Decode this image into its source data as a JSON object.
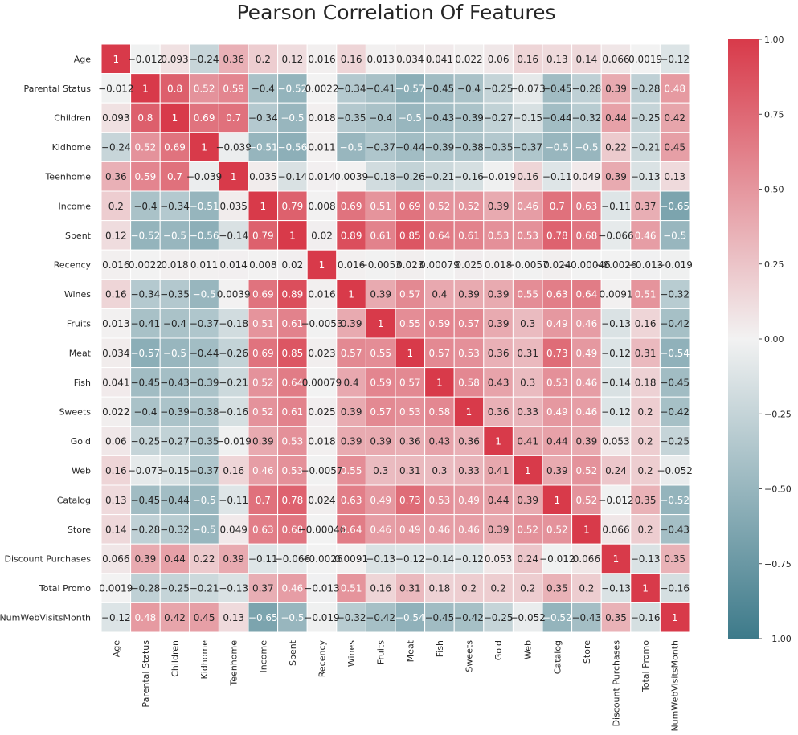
{
  "chart_data": {
    "type": "heatmap",
    "title": "Pearson Correlation Of Features",
    "rows": [
      "Age",
      "Parental Status",
      "Children",
      "Kidhome",
      "Teenhome",
      "Income",
      "Spent",
      "Recency",
      "Wines",
      "Fruits",
      "Meat",
      "Fish",
      "Sweets",
      "Gold",
      "Web",
      "Catalog",
      "Store",
      "Discount Purchases",
      "Total Promo",
      "NumWebVisitsMonth"
    ],
    "columns": [
      "Age",
      "Parental Status",
      "Children",
      "Kidhome",
      "Teenhome",
      "Income",
      "Spent",
      "Recency",
      "Wines",
      "Fruits",
      "Meat",
      "Fish",
      "Sweets",
      "Gold",
      "Web",
      "Catalog",
      "Store",
      "Discount Purchases",
      "Total Promo",
      "NumWebVisitsMonth"
    ],
    "values": [
      [
        1,
        -0.012,
        0.093,
        -0.24,
        0.36,
        0.2,
        0.12,
        0.016,
        0.16,
        0.013,
        0.034,
        0.041,
        0.022,
        0.06,
        0.16,
        0.13,
        0.14,
        0.066,
        0.0019,
        -0.12
      ],
      [
        -0.012,
        1,
        0.8,
        0.52,
        0.59,
        -0.4,
        -0.52,
        0.0022,
        -0.34,
        -0.41,
        -0.57,
        -0.45,
        -0.4,
        -0.25,
        -0.073,
        -0.45,
        -0.28,
        0.39,
        -0.28,
        0.48
      ],
      [
        0.093,
        0.8,
        1,
        0.69,
        0.7,
        -0.34,
        -0.5,
        0.018,
        -0.35,
        -0.4,
        -0.5,
        -0.43,
        -0.39,
        -0.27,
        -0.15,
        -0.44,
        -0.32,
        0.44,
        -0.25,
        0.42
      ],
      [
        -0.24,
        0.52,
        0.69,
        1,
        -0.039,
        -0.51,
        -0.56,
        0.011,
        -0.5,
        -0.37,
        -0.44,
        -0.39,
        -0.38,
        -0.35,
        -0.37,
        -0.5,
        -0.5,
        0.22,
        -0.21,
        0.45
      ],
      [
        0.36,
        0.59,
        0.7,
        -0.039,
        1,
        0.035,
        -0.14,
        0.014,
        0.0039,
        -0.18,
        -0.26,
        -0.21,
        -0.16,
        -0.019,
        0.16,
        -0.11,
        0.049,
        0.39,
        -0.13,
        0.13
      ],
      [
        0.2,
        -0.4,
        -0.34,
        -0.51,
        0.035,
        1,
        0.79,
        0.008,
        0.69,
        0.51,
        0.69,
        0.52,
        0.52,
        0.39,
        0.46,
        0.7,
        0.63,
        -0.11,
        0.37,
        -0.65
      ],
      [
        0.12,
        -0.52,
        -0.5,
        -0.56,
        -0.14,
        0.79,
        1,
        0.02,
        0.89,
        0.61,
        0.85,
        0.64,
        0.61,
        0.53,
        0.53,
        0.78,
        0.68,
        -0.066,
        0.46,
        -0.5
      ],
      [
        0.016,
        0.0022,
        0.018,
        0.011,
        0.014,
        0.008,
        0.02,
        1,
        0.016,
        -0.0053,
        0.023,
        0.00079,
        0.025,
        0.018,
        -0.0057,
        0.024,
        -0.00046,
        -0.0026,
        -0.013,
        -0.019
      ],
      [
        0.16,
        -0.34,
        -0.35,
        -0.5,
        0.0039,
        0.69,
        0.89,
        0.016,
        1,
        0.39,
        0.57,
        0.4,
        0.39,
        0.39,
        0.55,
        0.63,
        0.64,
        0.0091,
        0.51,
        -0.32
      ],
      [
        0.013,
        -0.41,
        -0.4,
        -0.37,
        -0.18,
        0.51,
        0.61,
        -0.0053,
        0.39,
        1,
        0.55,
        0.59,
        0.57,
        0.39,
        0.3,
        0.49,
        0.46,
        -0.13,
        0.16,
        -0.42
      ],
      [
        0.034,
        -0.57,
        -0.5,
        -0.44,
        -0.26,
        0.69,
        0.85,
        0.023,
        0.57,
        0.55,
        1,
        0.57,
        0.53,
        0.36,
        0.31,
        0.73,
        0.49,
        -0.12,
        0.31,
        -0.54
      ],
      [
        0.041,
        -0.45,
        -0.43,
        -0.39,
        -0.21,
        0.52,
        0.64,
        0.00079,
        0.4,
        0.59,
        0.57,
        1,
        0.58,
        0.43,
        0.3,
        0.53,
        0.46,
        -0.14,
        0.18,
        -0.45
      ],
      [
        0.022,
        -0.4,
        -0.39,
        -0.38,
        -0.16,
        0.52,
        0.61,
        0.025,
        0.39,
        0.57,
        0.53,
        0.58,
        1,
        0.36,
        0.33,
        0.49,
        0.46,
        -0.12,
        0.2,
        -0.42
      ],
      [
        0.06,
        -0.25,
        -0.27,
        -0.35,
        -0.019,
        0.39,
        0.53,
        0.018,
        0.39,
        0.39,
        0.36,
        0.43,
        0.36,
        1,
        0.41,
        0.44,
        0.39,
        0.053,
        0.2,
        -0.25
      ],
      [
        0.16,
        -0.073,
        -0.15,
        -0.37,
        0.16,
        0.46,
        0.53,
        -0.0057,
        0.55,
        0.3,
        0.31,
        0.3,
        0.33,
        0.41,
        1,
        0.39,
        0.52,
        0.24,
        0.2,
        -0.052
      ],
      [
        0.13,
        -0.45,
        -0.44,
        -0.5,
        -0.11,
        0.7,
        0.78,
        0.024,
        0.63,
        0.49,
        0.73,
        0.53,
        0.49,
        0.44,
        0.39,
        1,
        0.52,
        -0.012,
        0.35,
        -0.52
      ],
      [
        0.14,
        -0.28,
        -0.32,
        -0.5,
        0.049,
        0.63,
        0.68,
        -0.00046,
        0.64,
        0.46,
        0.49,
        0.46,
        0.46,
        0.39,
        0.52,
        0.52,
        1,
        0.066,
        0.2,
        -0.43
      ],
      [
        0.066,
        0.39,
        0.44,
        0.22,
        0.39,
        -0.11,
        -0.066,
        -0.0026,
        0.0091,
        -0.13,
        -0.12,
        -0.14,
        -0.12,
        0.053,
        0.24,
        -0.012,
        0.066,
        1,
        -0.13,
        0.35
      ],
      [
        0.0019,
        -0.28,
        -0.25,
        -0.21,
        -0.13,
        0.37,
        0.46,
        -0.013,
        0.51,
        0.16,
        0.31,
        0.18,
        0.2,
        0.2,
        0.2,
        0.35,
        0.2,
        -0.13,
        1,
        -0.16
      ],
      [
        -0.12,
        0.48,
        0.42,
        0.45,
        0.13,
        -0.65,
        -0.5,
        -0.019,
        -0.32,
        -0.42,
        -0.54,
        -0.45,
        -0.42,
        -0.25,
        -0.052,
        -0.52,
        -0.43,
        0.35,
        -0.16,
        1
      ]
    ],
    "vmin": -1,
    "vmax": 1,
    "colormap": {
      "low": "#3d7a8a",
      "mid": "#f2f2f2",
      "high": "#d83a4a"
    },
    "colorbar": {
      "ticks": [
        1,
        0.75,
        0.5,
        0.25,
        0,
        -0.25,
        -0.5,
        -0.75,
        -1
      ],
      "tick_labels": [
        "1.00",
        "0.75",
        "0.50",
        "0.25",
        "0.00",
        "−0.25",
        "−0.50",
        "−0.75",
        "−1.00"
      ]
    },
    "grid": true,
    "annotations": true
  }
}
